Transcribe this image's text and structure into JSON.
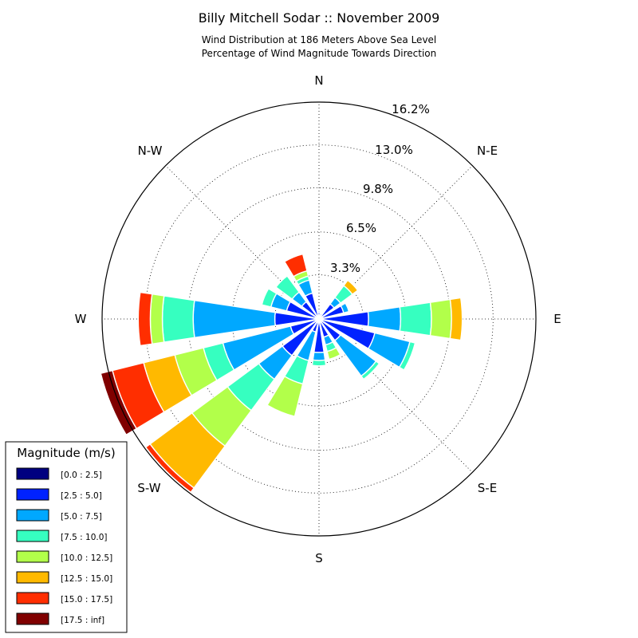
{
  "chart_data": {
    "type": "windrose",
    "title": "Billy Mitchell Sodar :: November 2009",
    "subtitle_lines": [
      "Wind Distribution at 186 Meters Above Sea Level",
      "Percentage of Wind Magnitude Towards Direction"
    ],
    "direction_labels": [
      "N",
      "N-E",
      "E",
      "S-E",
      "S",
      "S-W",
      "W",
      "N-W"
    ],
    "radial_ticks": [
      "3.3%",
      "6.5%",
      "9.8%",
      "13.0%",
      "16.2%"
    ],
    "radial_tick_values": [
      3.3,
      6.5,
      9.8,
      13.0,
      16.2
    ],
    "rmax": 16.2,
    "legend": {
      "title": "Magnitude (m/s)",
      "bins": [
        "[0.0 : 2.5]",
        "[2.5 : 5.0]",
        "[5.0 : 7.5]",
        "[7.5 : 10.0]",
        "[10.0 : 12.5]",
        "[12.5 : 15.0]",
        "[15.0 : 17.5]",
        "[17.5 : inf]"
      ]
    },
    "bin_colors": [
      "#000080",
      "#0022ff",
      "#00a8ff",
      "#36ffc0",
      "#b2ff4a",
      "#ffb900",
      "#ff2e00",
      "#800000"
    ],
    "sectors_deg": [
      0,
      22.5,
      45,
      67.5,
      90,
      112.5,
      135,
      157.5,
      180,
      202.5,
      225,
      247.5,
      270,
      292.5,
      315,
      337.5
    ],
    "cumulative_percent": [
      [
        0.2,
        0.5,
        0.6,
        0.6,
        0.6,
        0.6,
        0.6,
        0.6
      ],
      [
        0.2,
        0.4,
        0.4,
        0.4,
        0.4,
        0.4,
        0.4,
        0.4
      ],
      [
        0.2,
        1.4,
        2.0,
        3.1,
        3.1,
        3.6,
        3.6,
        3.6
      ],
      [
        0.2,
        1.9,
        2.3,
        2.3,
        2.3,
        2.3,
        2.3,
        2.3
      ],
      [
        0.2,
        3.7,
        6.1,
        8.4,
        9.9,
        10.7,
        10.7,
        10.7
      ],
      [
        0.2,
        4.3,
        7.0,
        7.4,
        7.4,
        7.4,
        7.4,
        7.4
      ],
      [
        0.2,
        2.0,
        5.3,
        5.6,
        5.6,
        5.6,
        5.6,
        5.6
      ],
      [
        0.2,
        1.4,
        2.0,
        2.5,
        3.1,
        3.1,
        3.1,
        3.1
      ],
      [
        0.2,
        2.5,
        3.1,
        3.5,
        3.5,
        3.5,
        3.5,
        3.5
      ],
      [
        0.2,
        1.0,
        3.2,
        5.0,
        7.5,
        7.5,
        7.5,
        7.5
      ],
      [
        0.2,
        3.4,
        5.6,
        8.5,
        11.8,
        15.7,
        16.1,
        16.1
      ],
      [
        0.2,
        2.2,
        7.4,
        8.9,
        11.1,
        13.5,
        15.9,
        16.8
      ],
      [
        0.2,
        3.3,
        9.4,
        11.7,
        12.6,
        12.6,
        13.5,
        13.5
      ],
      [
        0.2,
        2.5,
        3.7,
        4.4,
        4.4,
        4.4,
        4.4,
        4.4
      ],
      [
        0.2,
        1.6,
        2.5,
        4.0,
        4.0,
        4.0,
        4.0,
        4.0
      ],
      [
        0.2,
        2.0,
        3.0,
        3.3,
        3.7,
        3.7,
        5.0,
        5.0
      ]
    ],
    "grid": true,
    "legend_position": "bottom-left"
  }
}
